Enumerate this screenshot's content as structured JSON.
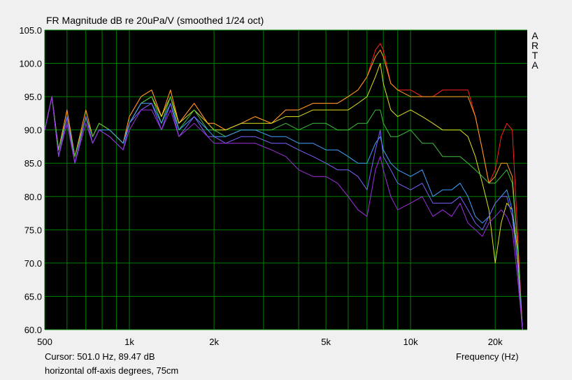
{
  "title": "FR Magnitude dB re 20uPa/V (smoothed 1/24 oct)",
  "brand_letters": [
    "A",
    "R",
    "T",
    "A"
  ],
  "cursor_text": "Cursor: 501.0 Hz, 89.47 dB",
  "caption": "horizontal off-axis degrees, 75cm",
  "colors": {
    "plot_bg": "#000000",
    "grid": "#008000",
    "window_bg": "#f0f0f0"
  },
  "chart_data": {
    "type": "line",
    "title": "FR Magnitude dB re 20uPa/V (smoothed 1/24 oct)",
    "xlabel": "Frequency (Hz)",
    "ylabel": "",
    "x_scale": "log",
    "xlim": [
      500,
      26000
    ],
    "ylim": [
      60,
      105
    ],
    "grid": true,
    "x_ticks": [
      {
        "value": 500,
        "label": "500"
      },
      {
        "value": 1000,
        "label": "1k"
      },
      {
        "value": 2000,
        "label": "2k"
      },
      {
        "value": 5000,
        "label": "5k"
      },
      {
        "value": 10000,
        "label": "10k"
      },
      {
        "value": 20000,
        "label": "20k"
      }
    ],
    "x_gridlines": [
      500,
      600,
      700,
      800,
      900,
      1000,
      2000,
      3000,
      4000,
      5000,
      6000,
      7000,
      8000,
      9000,
      10000,
      20000
    ],
    "y_ticks": [
      {
        "value": 105,
        "label": "105.0"
      },
      {
        "value": 100,
        "label": "100.0"
      },
      {
        "value": 95,
        "label": "95.0"
      },
      {
        "value": 90,
        "label": "90.0"
      },
      {
        "value": 85,
        "label": "85.0"
      },
      {
        "value": 80,
        "label": "80.0"
      },
      {
        "value": 75,
        "label": "75.0"
      },
      {
        "value": 70,
        "label": "70.0"
      },
      {
        "value": 65,
        "label": "65.0"
      },
      {
        "value": 60,
        "label": "60.0"
      }
    ],
    "series": [
      {
        "color": "#ff2020",
        "x": [
          500,
          530,
          560,
          600,
          640,
          700,
          740,
          780,
          850,
          950,
          1000,
          1100,
          1200,
          1300,
          1400,
          1500,
          1700,
          1900,
          2000,
          2200,
          2500,
          2800,
          3200,
          3600,
          4000,
          4500,
          5000,
          5500,
          6000,
          6500,
          7000,
          7500,
          7800,
          8000,
          8500,
          9000,
          10000,
          11000,
          12000,
          13000,
          14000,
          15000,
          16000,
          17000,
          18000,
          19000,
          20000,
          21000,
          22000,
          23000,
          24000,
          25000
        ],
        "y": [
          90,
          95,
          87,
          93,
          86,
          93,
          89,
          91,
          90,
          88,
          92,
          95,
          96,
          92,
          96,
          91,
          94,
          91,
          91,
          90,
          91,
          92,
          91,
          93,
          93,
          94,
          94,
          94,
          95,
          96,
          98,
          102,
          103,
          102,
          97,
          96,
          96,
          95,
          95,
          96,
          96,
          96,
          96,
          92,
          87,
          82,
          84,
          89,
          91,
          90,
          75,
          60
        ]
      },
      {
        "color": "#ffa020",
        "x": [
          500,
          530,
          560,
          600,
          640,
          700,
          740,
          780,
          850,
          950,
          1000,
          1100,
          1200,
          1300,
          1400,
          1500,
          1700,
          1900,
          2000,
          2200,
          2500,
          2800,
          3200,
          3600,
          4000,
          4500,
          5000,
          5500,
          6000,
          6500,
          7000,
          7500,
          7800,
          8000,
          8500,
          9000,
          10000,
          11000,
          12000,
          13000,
          14000,
          15000,
          16000,
          17000,
          18000,
          19000,
          20000,
          21000,
          22000,
          23000,
          24000,
          25000
        ],
        "y": [
          90,
          95,
          87,
          93,
          86,
          93,
          89,
          91,
          90,
          88,
          92,
          95,
          96,
          92,
          96,
          91,
          94,
          91,
          91,
          90,
          91,
          92,
          91,
          93,
          93,
          94,
          94,
          94,
          95,
          96,
          98,
          101,
          102,
          101,
          97,
          96,
          95,
          95,
          95,
          95,
          95,
          95,
          95,
          92,
          87,
          82,
          83,
          85,
          85,
          83,
          73,
          60
        ]
      },
      {
        "color": "#e0e020",
        "x": [
          500,
          530,
          560,
          600,
          640,
          700,
          740,
          780,
          850,
          950,
          1000,
          1100,
          1200,
          1300,
          1400,
          1500,
          1700,
          1900,
          2000,
          2200,
          2500,
          2800,
          3200,
          3600,
          4000,
          4500,
          5000,
          5500,
          6000,
          6500,
          7000,
          7500,
          7800,
          8000,
          8500,
          9000,
          10000,
          11000,
          12000,
          13000,
          14000,
          15000,
          16000,
          17000,
          18000,
          19000,
          20000,
          21000,
          22000,
          23000,
          24000,
          25000
        ],
        "y": [
          90,
          95,
          87,
          92,
          86,
          92,
          89,
          91,
          90,
          88,
          91,
          94,
          95,
          92,
          95,
          91,
          93,
          91,
          90,
          90,
          91,
          91,
          91,
          92,
          92,
          93,
          93,
          93,
          93,
          94,
          95,
          98,
          100,
          97,
          93,
          92,
          93,
          92,
          91,
          90,
          90,
          90,
          89,
          86,
          82,
          78,
          70,
          76,
          79,
          78,
          72,
          60
        ]
      },
      {
        "color": "#40c040",
        "x": [
          500,
          530,
          560,
          600,
          640,
          700,
          740,
          780,
          850,
          950,
          1000,
          1100,
          1200,
          1300,
          1400,
          1500,
          1700,
          1900,
          2000,
          2200,
          2500,
          2800,
          3200,
          3600,
          4000,
          4500,
          5000,
          5500,
          6000,
          6500,
          7000,
          7500,
          7800,
          8000,
          8500,
          9000,
          10000,
          11000,
          12000,
          13000,
          14000,
          15000,
          16000,
          17000,
          18000,
          19000,
          20000,
          21000,
          22000,
          23000,
          24000,
          25000
        ],
        "y": [
          90,
          95,
          87,
          92,
          86,
          92,
          89,
          91,
          90,
          88,
          91,
          94,
          95,
          91,
          95,
          90,
          93,
          90,
          90,
          89,
          90,
          90,
          90,
          91,
          90,
          91,
          91,
          90,
          90,
          91,
          91,
          93,
          93,
          91,
          89,
          89,
          90,
          88,
          88,
          86,
          86,
          86,
          85,
          84,
          83,
          82,
          82,
          83,
          84,
          82,
          73,
          60
        ]
      },
      {
        "color": "#40a0ff",
        "x": [
          500,
          530,
          560,
          600,
          640,
          700,
          740,
          780,
          850,
          950,
          1000,
          1100,
          1200,
          1300,
          1400,
          1500,
          1700,
          1900,
          2000,
          2200,
          2500,
          2800,
          3200,
          3600,
          4000,
          4500,
          5000,
          5500,
          6000,
          6500,
          7000,
          7500,
          7800,
          8000,
          8500,
          9000,
          10000,
          11000,
          12000,
          13000,
          14000,
          15000,
          16000,
          17000,
          18000,
          19000,
          20000,
          21000,
          22000,
          23000,
          24000,
          25000
        ],
        "y": [
          90,
          95,
          86,
          92,
          85,
          92,
          88,
          90,
          90,
          88,
          91,
          94,
          94,
          91,
          94,
          90,
          92,
          90,
          89,
          89,
          90,
          90,
          89,
          89,
          88,
          88,
          87,
          87,
          86,
          85,
          85,
          88,
          89,
          87,
          85,
          84,
          83,
          84,
          80,
          81,
          81,
          82,
          80,
          77,
          76,
          77,
          79,
          80,
          81,
          78,
          70,
          60
        ]
      },
      {
        "color": "#8060ff",
        "x": [
          500,
          530,
          560,
          600,
          640,
          700,
          740,
          780,
          850,
          950,
          1000,
          1100,
          1200,
          1300,
          1400,
          1500,
          1700,
          1900,
          2000,
          2200,
          2500,
          2800,
          3200,
          3600,
          4000,
          4500,
          5000,
          5500,
          6000,
          6500,
          7000,
          7500,
          7800,
          8000,
          8500,
          9000,
          10000,
          11000,
          12000,
          13000,
          14000,
          15000,
          16000,
          17000,
          18000,
          19000,
          20000,
          21000,
          22000,
          23000,
          24000,
          25000
        ],
        "y": [
          90,
          95,
          86,
          92,
          85,
          92,
          88,
          90,
          89,
          87,
          91,
          93,
          94,
          90,
          94,
          89,
          92,
          89,
          89,
          88,
          89,
          89,
          88,
          88,
          87,
          86,
          85,
          84,
          84,
          83,
          81,
          87,
          90,
          86,
          84,
          82,
          81,
          82,
          79,
          79,
          79,
          80,
          78,
          76,
          75,
          77,
          79,
          80,
          80,
          77,
          70,
          60
        ]
      },
      {
        "color": "#a030e0",
        "x": [
          500,
          530,
          560,
          600,
          640,
          700,
          740,
          780,
          850,
          950,
          1000,
          1100,
          1200,
          1300,
          1400,
          1500,
          1700,
          1900,
          2000,
          2200,
          2500,
          2800,
          3200,
          3600,
          4000,
          4500,
          5000,
          5500,
          6000,
          6500,
          7000,
          7500,
          7800,
          8000,
          8500,
          9000,
          10000,
          11000,
          12000,
          13000,
          14000,
          15000,
          16000,
          17000,
          18000,
          19000,
          20000,
          21000,
          22000,
          23000,
          24000,
          25000
        ],
        "y": [
          90,
          95,
          86,
          91,
          85,
          91,
          88,
          90,
          89,
          87,
          90,
          93,
          93,
          90,
          93,
          89,
          91,
          89,
          88,
          88,
          88,
          88,
          87,
          86,
          84,
          83,
          83,
          82,
          80,
          78,
          77,
          84,
          86,
          84,
          80,
          78,
          79,
          80,
          77,
          78,
          77,
          79,
          76,
          75,
          74,
          76,
          77,
          78,
          77,
          75,
          68,
          60
        ]
      }
    ]
  }
}
